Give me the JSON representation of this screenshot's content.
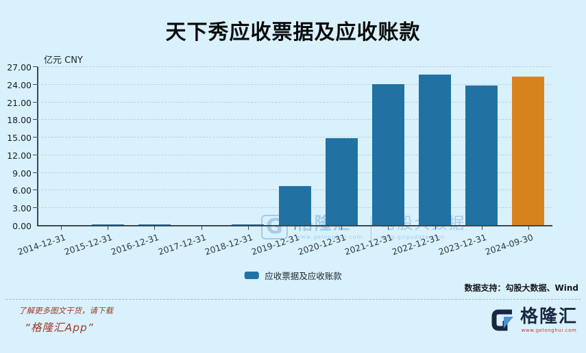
{
  "title": "天下秀应收票据及应收账款",
  "y_axis": {
    "unit": "亿元 CNY",
    "ticks": [
      "27.00",
      "24.00",
      "21.00",
      "18.00",
      "15.00",
      "12.00",
      "9.00",
      "6.00",
      "3.00",
      "0.00"
    ]
  },
  "chart_data": {
    "type": "bar",
    "title": "天下秀应收票据及应收账款",
    "ylabel": "亿元 CNY",
    "ylim": [
      0,
      27
    ],
    "ytick_step": 3,
    "grid": "horizontal-dashed",
    "legend_position": "bottom-center",
    "categories": [
      "2014-12-31",
      "2015-12-31",
      "2016-12-31",
      "2017-12-31",
      "2018-12-31",
      "2019-12-31",
      "2020-12-31",
      "2021-12-31",
      "2022-12-31",
      "2023-12-31",
      "2024-09-30"
    ],
    "series": [
      {
        "name": "应收票据及应收账款",
        "values": [
          0.08,
          0.28,
          0.2,
          0.13,
          0.28,
          6.7,
          14.95,
          24.1,
          25.7,
          23.9,
          25.4
        ]
      }
    ],
    "bar_color": "#2172a3",
    "highlight_index": 10,
    "highlight_color": "#d7831d"
  },
  "legend": {
    "label": "应收票据及应收账款",
    "color": "#2172a3"
  },
  "source_note": "数据支持：勾股大数据、Wind",
  "watermark": {
    "g_mark": "G",
    "brand": "格隆汇",
    "brand_url": "www.gelonghui.com",
    "partner": "勾股大数据",
    "partner_url": "www.gogudata.com"
  },
  "footer": {
    "promo_line1": "了解更多图文干货，请下载",
    "promo_line2": "“格隆汇App”",
    "logo_text": "格隆汇",
    "logo_url": "www.gelonghui.com"
  },
  "colors": {
    "background": "#d9f1fc",
    "bar": "#2172a3",
    "highlight_bar": "#d7831d",
    "axis": "#3c474f",
    "promo_text": "#9c3a24",
    "logo_navy": "#1a2742",
    "logo_blue": "#4f90d2"
  }
}
